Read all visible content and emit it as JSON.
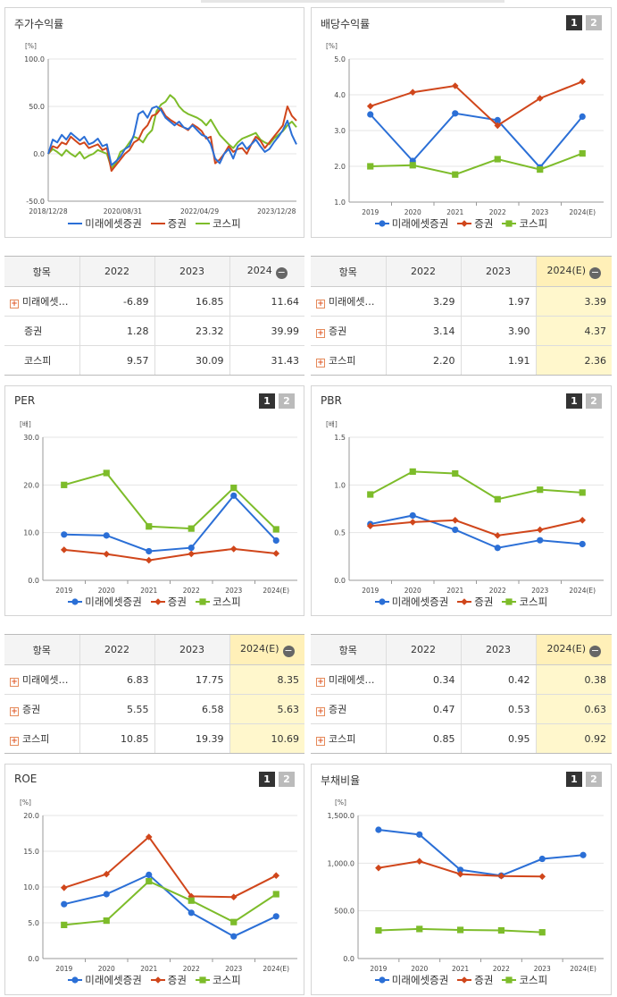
{
  "colors": {
    "mirae": "#2b6fd6",
    "sec": "#d0461b",
    "kospi": "#7dbc2a"
  },
  "legend": [
    "미래에셋증권",
    "증권",
    "코스피"
  ],
  "tabs": [
    "1",
    "2"
  ],
  "charts": {
    "stock": {
      "title": "주가수익률",
      "unit": "[%]",
      "yticks": [
        "100.0",
        "50.0",
        "0.0",
        "-50.0"
      ],
      "ylim": [
        -50,
        100
      ],
      "xticks": [
        "2018/12/28",
        "2020/08/31",
        "2022/04/29",
        "2023/12/28"
      ],
      "chart_data": {
        "type": "line",
        "x_range": [
          "2018/12/28",
          "2024/06"
        ],
        "series": [
          {
            "name": "미래에셋증권",
            "values": [
              0,
              15,
              12,
              20,
              15,
              22,
              18,
              14,
              18,
              10,
              12,
              16,
              8,
              10,
              -12,
              -8,
              -3,
              5,
              8,
              20,
              42,
              45,
              38,
              48,
              50,
              46,
              38,
              34,
              30,
              34,
              28,
              26,
              30,
              25,
              20,
              18,
              10,
              -5,
              -10,
              0,
              5,
              -5,
              8,
              12,
              5,
              10,
              15,
              8,
              2,
              5,
              12,
              18,
              25,
              35,
              20,
              10
            ]
          },
          {
            "name": "증권",
            "values": [
              0,
              8,
              6,
              12,
              10,
              18,
              14,
              10,
              12,
              6,
              8,
              10,
              4,
              6,
              -18,
              -12,
              -6,
              0,
              4,
              12,
              15,
              25,
              30,
              40,
              42,
              48,
              40,
              36,
              33,
              30,
              28,
              25,
              31,
              28,
              24,
              16,
              18,
              -10,
              -6,
              0,
              8,
              2,
              5,
              6,
              0,
              10,
              18,
              14,
              6,
              12,
              18,
              24,
              30,
              50,
              40,
              35
            ]
          },
          {
            "name": "코스피",
            "values": [
              0,
              5,
              2,
              -2,
              4,
              0,
              -3,
              2,
              -5,
              -2,
              0,
              4,
              2,
              0,
              -15,
              -10,
              2,
              5,
              12,
              18,
              16,
              12,
              20,
              25,
              45,
              52,
              55,
              62,
              58,
              50,
              45,
              42,
              40,
              38,
              35,
              30,
              36,
              28,
              20,
              15,
              10,
              6,
              12,
              16,
              18,
              20,
              22,
              15,
              12,
              10,
              16,
              20,
              24,
              30,
              34,
              28
            ]
          }
        ]
      }
    },
    "div": {
      "title": "배당수익률",
      "unit": "[%]",
      "yticks": [
        "5.0",
        "4.0",
        "3.0",
        "2.0",
        "1.0"
      ],
      "ylim": [
        1,
        5
      ],
      "chart_data": {
        "type": "line",
        "categories": [
          "2019",
          "2020",
          "2021",
          "2022",
          "2023",
          "2024(E)"
        ],
        "series": [
          {
            "name": "미래에셋증권",
            "values": [
              3.45,
              2.15,
              3.48,
              3.29,
              1.97,
              3.39
            ]
          },
          {
            "name": "증권",
            "values": [
              3.68,
              4.07,
              4.25,
              3.14,
              3.9,
              4.37
            ]
          },
          {
            "name": "코스피",
            "values": [
              2.0,
              2.03,
              1.77,
              2.2,
              1.91,
              2.36
            ]
          }
        ]
      }
    },
    "per": {
      "title": "PER",
      "unit": "[배]",
      "yticks": [
        "30.0",
        "20.0",
        "10.0",
        "0.0"
      ],
      "ylim": [
        0,
        30
      ],
      "chart_data": {
        "type": "line",
        "categories": [
          "2019",
          "2020",
          "2021",
          "2022",
          "2023",
          "2024(E)"
        ],
        "series": [
          {
            "name": "미래에셋증권",
            "values": [
              9.6,
              9.4,
              6.1,
              6.83,
              17.75,
              8.35
            ]
          },
          {
            "name": "증권",
            "values": [
              6.4,
              5.5,
              4.2,
              5.55,
              6.58,
              5.63
            ]
          },
          {
            "name": "코스피",
            "values": [
              20.0,
              22.5,
              11.3,
              10.85,
              19.39,
              10.69
            ]
          }
        ]
      }
    },
    "pbr": {
      "title": "PBR",
      "unit": "[배]",
      "yticks": [
        "1.5",
        "1.0",
        "0.5",
        "0.0"
      ],
      "ylim": [
        0,
        1.5
      ],
      "chart_data": {
        "type": "line",
        "categories": [
          "2019",
          "2020",
          "2021",
          "2022",
          "2023",
          "2024(E)"
        ],
        "series": [
          {
            "name": "미래에셋증권",
            "values": [
              0.59,
              0.68,
              0.53,
              0.34,
              0.42,
              0.38
            ]
          },
          {
            "name": "증권",
            "values": [
              0.57,
              0.61,
              0.63,
              0.47,
              0.53,
              0.63
            ]
          },
          {
            "name": "코스피",
            "values": [
              0.9,
              1.14,
              1.12,
              0.85,
              0.95,
              0.92
            ]
          }
        ]
      }
    },
    "roe": {
      "title": "ROE",
      "unit": "[%]",
      "yticks": [
        "20.0",
        "15.0",
        "10.0",
        "5.0",
        "0.0"
      ],
      "ylim": [
        0,
        20
      ],
      "chart_data": {
        "type": "line",
        "categories": [
          "2019",
          "2020",
          "2021",
          "2022",
          "2023",
          "2024(E)"
        ],
        "series": [
          {
            "name": "미래에셋증권",
            "values": [
              7.6,
              9.0,
              11.7,
              6.4,
              3.1,
              5.9
            ]
          },
          {
            "name": "증권",
            "values": [
              9.9,
              11.8,
              17.0,
              8.7,
              8.6,
              11.6
            ]
          },
          {
            "name": "코스피",
            "values": [
              4.7,
              5.3,
              10.8,
              8.1,
              5.1,
              9.0
            ]
          }
        ]
      }
    },
    "debt": {
      "title": "부채비율",
      "unit": "[%]",
      "yticks": [
        "1,500.0",
        "1,000.0",
        "500.0",
        "0.0"
      ],
      "ylim": [
        0,
        1500
      ],
      "chart_data": {
        "type": "line",
        "categories": [
          "2019",
          "2020",
          "2021",
          "2022",
          "2023",
          "2024(E)"
        ],
        "series": [
          {
            "name": "미래에셋증권",
            "values": [
              1350,
              1300,
              930,
              870,
              1045,
              1085
            ]
          },
          {
            "name": "증권",
            "values": [
              950,
              1020,
              885,
              865,
              860,
              null
            ]
          },
          {
            "name": "코스피",
            "values": [
              295,
              310,
              300,
              295,
              275,
              null
            ]
          }
        ]
      }
    }
  },
  "tables": {
    "stock": {
      "headers": [
        "항목",
        "2022",
        "2023",
        "2024"
      ],
      "rows": [
        {
          "name": "미래에셋…",
          "v": [
            "-6.89",
            "16.85",
            "11.64"
          ]
        },
        {
          "name": "증권",
          "v": [
            "1.28",
            "23.32",
            "39.99"
          ]
        },
        {
          "name": "코스피",
          "v": [
            "9.57",
            "30.09",
            "31.43"
          ]
        }
      ]
    },
    "div": {
      "headers": [
        "항목",
        "2022",
        "2023",
        "2024(E)"
      ],
      "rows": [
        {
          "name": "미래에셋…",
          "v": [
            "3.29",
            "1.97",
            "3.39"
          ]
        },
        {
          "name": "증권",
          "v": [
            "3.14",
            "3.90",
            "4.37"
          ]
        },
        {
          "name": "코스피",
          "v": [
            "2.20",
            "1.91",
            "2.36"
          ]
        }
      ]
    },
    "per": {
      "headers": [
        "항목",
        "2022",
        "2023",
        "2024(E)"
      ],
      "rows": [
        {
          "name": "미래에셋…",
          "v": [
            "6.83",
            "17.75",
            "8.35"
          ]
        },
        {
          "name": "증권",
          "v": [
            "5.55",
            "6.58",
            "5.63"
          ]
        },
        {
          "name": "코스피",
          "v": [
            "10.85",
            "19.39",
            "10.69"
          ]
        }
      ]
    },
    "pbr": {
      "headers": [
        "항목",
        "2022",
        "2023",
        "2024(E)"
      ],
      "rows": [
        {
          "name": "미래에셋…",
          "v": [
            "0.34",
            "0.42",
            "0.38"
          ]
        },
        {
          "name": "증권",
          "v": [
            "0.47",
            "0.53",
            "0.63"
          ]
        },
        {
          "name": "코스피",
          "v": [
            "0.85",
            "0.95",
            "0.92"
          ]
        }
      ]
    }
  }
}
